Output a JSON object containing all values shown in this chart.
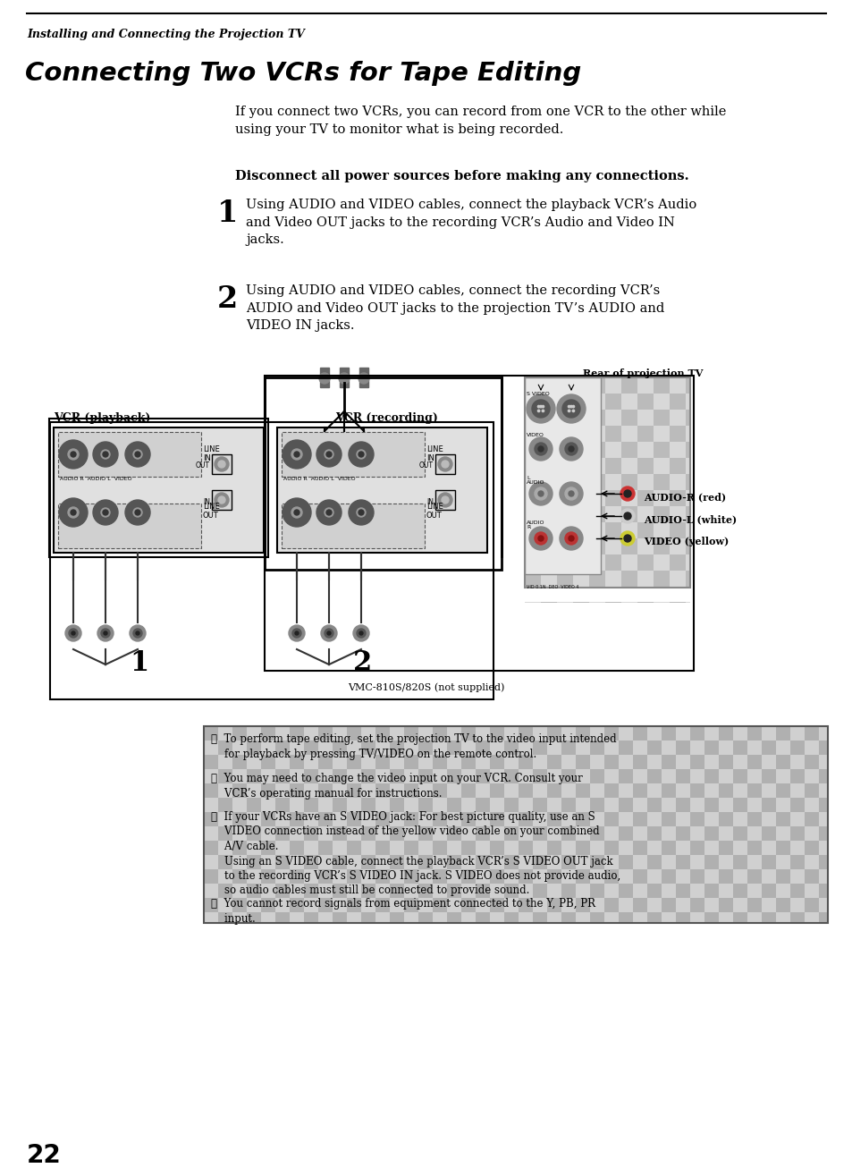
{
  "page_title": "Installing and Connecting the Projection TV",
  "section_title": "Connecting Two VCRs for Tape Editing",
  "intro_text": "If you connect two VCRs, you can record from one VCR to the other while\nusing your TV to monitor what is being recorded.",
  "warning_text": "Disconnect all power sources before making any connections.",
  "step1_num": "1",
  "step1_text": "Using AUDIO and VIDEO cables, connect the playback VCR’s Audio\nand Video OUT jacks to the recording VCR’s Audio and Video IN\njacks.",
  "step2_num": "2",
  "step2_text": "Using AUDIO and VIDEO cables, connect the recording VCR’s\nAUDIO and Video OUT jacks to the projection TV’s AUDIO and\nVIDEO IN jacks.",
  "diagram_label_rear": "Rear of projection TV",
  "diagram_label_vcr1": "VCR (playback)",
  "diagram_label_vcr2": "VCR (recording)",
  "diagram_label_vmcno": "VMC-810S/820S (not supplied)",
  "note1": "␓  To perform tape editing, set the projection TV to the video input intended\n    for playback by pressing TV/VIDEO on the remote control.",
  "note2": "␓  You may need to change the video input on your VCR. Consult your\n    VCR’s operating manual for instructions.",
  "note3": "␓  If your VCRs have an S VIDEO jack: For best picture quality, use an S\n    VIDEO connection instead of the yellow video cable on your combined\n    A/V cable.\n    Using an S VIDEO cable, connect the playback VCR’s S VIDEO OUT jack\n    to the recording VCR’s S VIDEO IN jack. S VIDEO does not provide audio,\n    so audio cables must still be connected to provide sound.",
  "note4": "␓  You cannot record signals from equipment connected to the Y, PB, PR\n    input.",
  "page_number": "22",
  "bg_color": "#ffffff",
  "text_color": "#000000"
}
